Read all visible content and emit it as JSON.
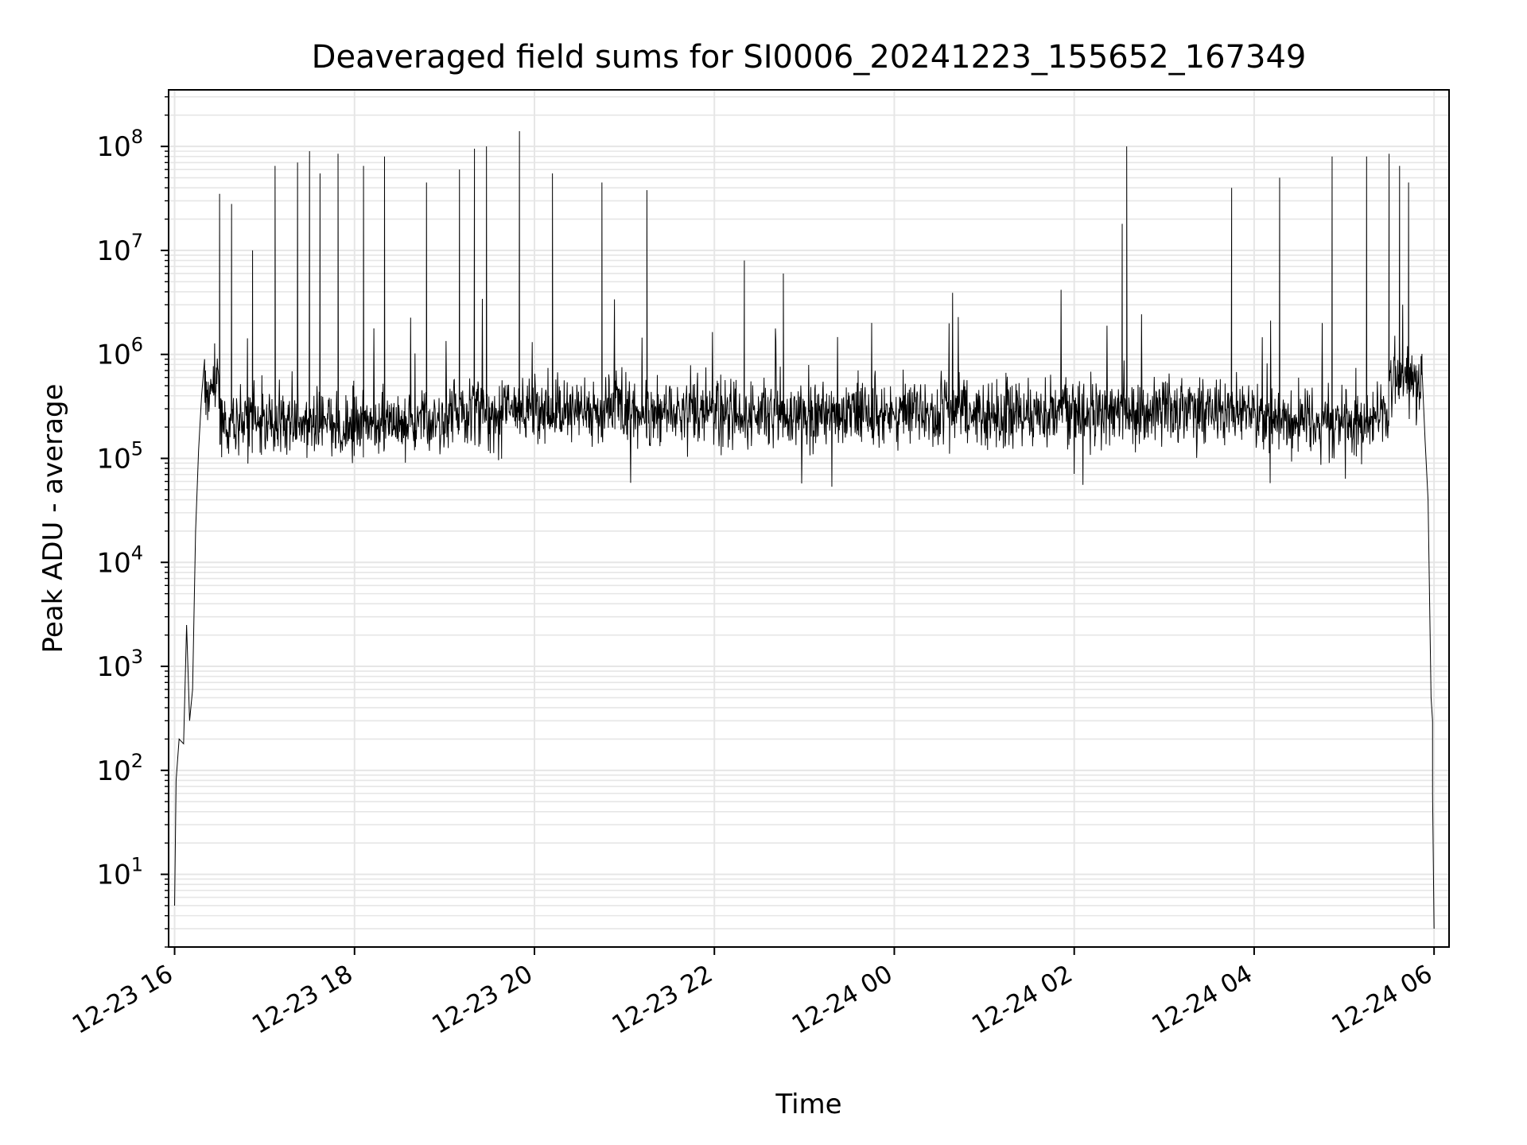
{
  "chart_data": {
    "type": "line",
    "title": "Deaveraged field sums for SI0006_20241223_155652_167349",
    "xlabel": "Time",
    "ylabel": "Peak ADU - average",
    "yscale": "log",
    "ylim": [
      2,
      350000000
    ],
    "xlim": [
      "2024-12-23 15:56",
      "2024-12-24 06:10"
    ],
    "x_tick_labels": [
      "12-23 16",
      "12-23 18",
      "12-23 20",
      "12-23 22",
      "12-24 00",
      "12-24 02",
      "12-24 04",
      "12-24 06"
    ],
    "y_tick_labels": [
      {
        "base": "10",
        "exp": "1"
      },
      {
        "base": "10",
        "exp": "2"
      },
      {
        "base": "10",
        "exp": "3"
      },
      {
        "base": "10",
        "exp": "4"
      },
      {
        "base": "10",
        "exp": "5"
      },
      {
        "base": "10",
        "exp": "6"
      },
      {
        "base": "10",
        "exp": "7"
      },
      {
        "base": "10",
        "exp": "8"
      }
    ],
    "grid": true,
    "line_color": "#000000",
    "grid_color": "#e6e6e6",
    "series_start": "2024-12-23 16:00",
    "series_end": "2024-12-24 06:00",
    "ramp_up": [
      {
        "t": "2024-12-23 16:00",
        "v": 5
      },
      {
        "t": "2024-12-23 16:01",
        "v": 80
      },
      {
        "t": "2024-12-23 16:03",
        "v": 200
      },
      {
        "t": "2024-12-23 16:06",
        "v": 180
      },
      {
        "t": "2024-12-23 16:08",
        "v": 2500
      },
      {
        "t": "2024-12-23 16:10",
        "v": 300
      },
      {
        "t": "2024-12-23 16:12",
        "v": 600
      },
      {
        "t": "2024-12-23 16:14",
        "v": 20000
      },
      {
        "t": "2024-12-23 16:16",
        "v": 120000
      },
      {
        "t": "2024-12-23 16:18",
        "v": 400000
      },
      {
        "t": "2024-12-23 16:20",
        "v": 900000
      }
    ],
    "ramp_down": [
      {
        "t": "2024-12-24 05:52",
        "v": 700000
      },
      {
        "t": "2024-12-24 05:54",
        "v": 150000
      },
      {
        "t": "2024-12-24 05:56",
        "v": 40000
      },
      {
        "t": "2024-12-24 05:58",
        "v": 500
      },
      {
        "t": "2024-12-24 05:59",
        "v": 300
      },
      {
        "t": "2024-12-24 05:59",
        "v": 60
      },
      {
        "t": "2024-12-24 06:00",
        "v": 3
      }
    ],
    "baseline_segments": [
      {
        "from": "2024-12-23 16:20",
        "to": "2024-12-23 16:30",
        "median": 500000
      },
      {
        "from": "2024-12-23 16:30",
        "to": "2024-12-23 19:00",
        "median": 220000
      },
      {
        "from": "2024-12-23 19:00",
        "to": "2024-12-24 04:00",
        "median": 280000
      },
      {
        "from": "2024-12-24 04:00",
        "to": "2024-12-24 05:30",
        "median": 230000
      },
      {
        "from": "2024-12-24 05:30",
        "to": "2024-12-24 05:52",
        "median": 600000
      }
    ],
    "spikes": [
      {
        "t": "2024-12-23 16:30",
        "v": 35000000
      },
      {
        "t": "2024-12-23 16:38",
        "v": 28000000
      },
      {
        "t": "2024-12-23 16:52",
        "v": 10000000
      },
      {
        "t": "2024-12-23 17:07",
        "v": 65000000
      },
      {
        "t": "2024-12-23 17:22",
        "v": 70000000
      },
      {
        "t": "2024-12-23 17:30",
        "v": 90000000
      },
      {
        "t": "2024-12-23 17:37",
        "v": 55000000
      },
      {
        "t": "2024-12-23 17:49",
        "v": 85000000
      },
      {
        "t": "2024-12-23 18:06",
        "v": 65000000
      },
      {
        "t": "2024-12-23 18:20",
        "v": 80000000
      },
      {
        "t": "2024-12-23 18:48",
        "v": 45000000
      },
      {
        "t": "2024-12-23 19:10",
        "v": 60000000
      },
      {
        "t": "2024-12-23 19:20",
        "v": 95000000
      },
      {
        "t": "2024-12-23 19:28",
        "v": 100000000
      },
      {
        "t": "2024-12-23 19:50",
        "v": 140000000
      },
      {
        "t": "2024-12-23 20:12",
        "v": 55000000
      },
      {
        "t": "2024-12-23 20:45",
        "v": 45000000
      },
      {
        "t": "2024-12-23 21:15",
        "v": 38000000
      },
      {
        "t": "2024-12-23 22:20",
        "v": 8000000
      },
      {
        "t": "2024-12-23 22:46",
        "v": 6000000
      },
      {
        "t": "2024-12-24 02:32",
        "v": 18000000
      },
      {
        "t": "2024-12-24 02:35",
        "v": 100000000
      },
      {
        "t": "2024-12-24 03:45",
        "v": 40000000
      },
      {
        "t": "2024-12-24 04:17",
        "v": 50000000
      },
      {
        "t": "2024-12-24 04:52",
        "v": 80000000
      },
      {
        "t": "2024-12-24 05:15",
        "v": 80000000
      },
      {
        "t": "2024-12-24 05:30",
        "v": 85000000
      },
      {
        "t": "2024-12-24 05:37",
        "v": 65000000
      },
      {
        "t": "2024-12-24 05:43",
        "v": 45000000
      }
    ]
  }
}
